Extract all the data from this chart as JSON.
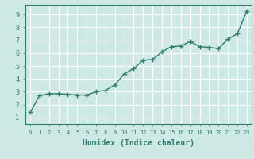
{
  "x": [
    0,
    1,
    2,
    3,
    4,
    5,
    6,
    7,
    8,
    9,
    10,
    11,
    12,
    13,
    14,
    15,
    16,
    17,
    18,
    19,
    20,
    21,
    22,
    23
  ],
  "y": [
    1.4,
    2.7,
    2.85,
    2.85,
    2.8,
    2.75,
    2.75,
    3.0,
    3.1,
    3.55,
    4.4,
    4.8,
    5.45,
    5.5,
    6.1,
    6.5,
    6.55,
    6.9,
    6.5,
    6.45,
    6.35,
    7.1,
    7.5,
    9.25
  ],
  "line_color": "#2e7d6e",
  "bg_color": "#cde8e5",
  "grid_color": "#ffffff",
  "tick_color": "#2e7d6e",
  "xlabel": "Humidex (Indice chaleur)",
  "xlim": [
    -0.5,
    23.5
  ],
  "ylim": [
    0.5,
    9.75
  ],
  "yticks": [
    1,
    2,
    3,
    4,
    5,
    6,
    7,
    8,
    9
  ],
  "xticks": [
    0,
    1,
    2,
    3,
    4,
    5,
    6,
    7,
    8,
    9,
    10,
    11,
    12,
    13,
    14,
    15,
    16,
    17,
    18,
    19,
    20,
    21,
    22,
    23
  ],
  "marker": "+",
  "markersize": 4,
  "linewidth": 1.0,
  "font_color": "#2e7d6e",
  "xlabel_fontsize": 7,
  "tick_fontsize_x": 5,
  "tick_fontsize_y": 6
}
